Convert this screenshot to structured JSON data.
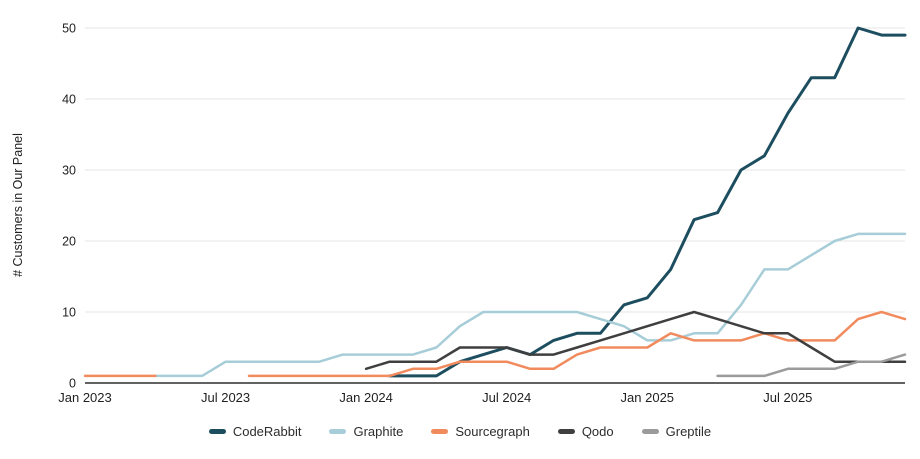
{
  "chart_data": {
    "type": "line",
    "title": "",
    "xlabel": "",
    "ylabel": "# Customers in Our Panel",
    "ylim": [
      0,
      50
    ],
    "yticks": [
      0,
      10,
      20,
      30,
      40,
      50
    ],
    "grid": "horizontal",
    "legend_position": "bottom",
    "x": [
      "Jan 2023",
      "Feb 2023",
      "Mar 2023",
      "Apr 2023",
      "May 2023",
      "Jun 2023",
      "Jul 2023",
      "Aug 2023",
      "Sep 2023",
      "Oct 2023",
      "Nov 2023",
      "Dec 2023",
      "Jan 2024",
      "Feb 2024",
      "Mar 2024",
      "Apr 2024",
      "May 2024",
      "Jun 2024",
      "Jul 2024",
      "Aug 2024",
      "Sep 2024",
      "Oct 2024",
      "Nov 2024",
      "Dec 2024",
      "Jan 2025",
      "Feb 2025",
      "Mar 2025",
      "Apr 2025",
      "May 2025",
      "Jun 2025",
      "Jul 2025",
      "Aug 2025",
      "Sep 2025",
      "Oct 2025",
      "Nov 2025",
      "Dec 2025"
    ],
    "xtick_labels": [
      "Jan 2023",
      "Jul 2023",
      "Jan 2024",
      "Jul 2024",
      "Jan 2025",
      "Jul 2025"
    ],
    "xtick_indices": [
      0,
      6,
      12,
      18,
      24,
      30
    ],
    "axis_color": "#2e2e2e",
    "grid_color": "#e4e4e4",
    "text_color": "#1f1f1f",
    "series": [
      {
        "name": "CodeRabbit",
        "color": "#1d4e5f",
        "width": 3,
        "values": [
          null,
          null,
          null,
          null,
          null,
          null,
          null,
          null,
          null,
          null,
          null,
          null,
          null,
          1,
          1,
          1,
          3,
          4,
          5,
          4,
          6,
          7,
          7,
          11,
          12,
          16,
          23,
          24,
          30,
          32,
          38,
          43,
          43,
          50,
          49,
          49
        ]
      },
      {
        "name": "Graphite",
        "color": "#a7cdd8",
        "width": 2.5,
        "values": [
          null,
          null,
          null,
          1,
          1,
          1,
          3,
          3,
          3,
          3,
          3,
          4,
          4,
          4,
          4,
          5,
          8,
          10,
          10,
          10,
          10,
          10,
          9,
          8,
          6,
          6,
          7,
          7,
          11,
          16,
          16,
          18,
          20,
          21,
          21,
          21
        ]
      },
      {
        "name": "Sourcegraph",
        "color": "#f18b5e",
        "width": 2.5,
        "values": [
          1,
          1,
          1,
          1,
          null,
          null,
          null,
          1,
          1,
          1,
          1,
          1,
          1,
          1,
          2,
          2,
          3,
          3,
          3,
          2,
          2,
          4,
          5,
          5,
          5,
          7,
          6,
          6,
          6,
          7,
          6,
          6,
          6,
          9,
          10,
          9
        ]
      },
      {
        "name": "Qodo",
        "color": "#3f3f3f",
        "width": 2.5,
        "values": [
          null,
          null,
          null,
          null,
          null,
          null,
          null,
          null,
          null,
          null,
          null,
          null,
          2,
          3,
          3,
          3,
          5,
          5,
          5,
          4,
          4,
          5,
          6,
          7,
          8,
          9,
          10,
          9,
          8,
          7,
          7,
          5,
          3,
          3,
          3,
          3
        ]
      },
      {
        "name": "Greptile",
        "color": "#9b9b9b",
        "width": 2.5,
        "values": [
          null,
          null,
          null,
          null,
          null,
          null,
          null,
          null,
          null,
          null,
          null,
          null,
          null,
          null,
          null,
          null,
          null,
          null,
          null,
          null,
          null,
          null,
          null,
          null,
          null,
          null,
          null,
          1,
          1,
          1,
          2,
          2,
          2,
          3,
          3,
          4
        ]
      }
    ]
  }
}
